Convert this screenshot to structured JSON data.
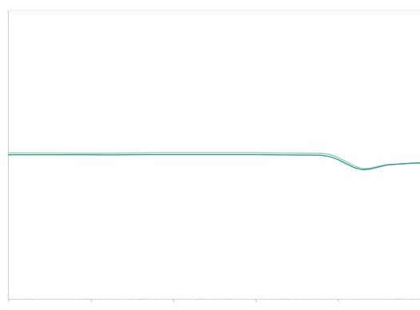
{
  "chart_data": {
    "type": "line",
    "title": "",
    "xlabel": "",
    "ylabel": "",
    "grid": false,
    "legend": "none",
    "xlim": [
      0,
      100
    ],
    "ylim": [
      -1,
      1
    ],
    "colors": {
      "series_a": "#3f9a86",
      "series_b": "#8ccfc1",
      "axis": "#cfcfcf",
      "frame_top": "#e6e6e6"
    },
    "series": [
      {
        "x": [
          0,
          4,
          8,
          12,
          16,
          20,
          24,
          28,
          32,
          36,
          40,
          44,
          48,
          52,
          56,
          60,
          64,
          68,
          72,
          76,
          78,
          80,
          82,
          84,
          86,
          88,
          90,
          92,
          94,
          96,
          98,
          100
        ],
        "values": [
          0.007,
          0.007,
          0.007,
          0.007,
          0.007,
          0.007,
          0.006,
          0.007,
          0.008,
          0.008,
          0.008,
          0.008,
          0.008,
          0.008,
          0.008,
          0.008,
          0.007,
          0.006,
          0.005,
          0.004,
          -0.005,
          -0.025,
          -0.055,
          -0.082,
          -0.098,
          -0.092,
          -0.078,
          -0.065,
          -0.06,
          -0.056,
          -0.052,
          -0.05
        ]
      },
      {
        "x": [
          0,
          4,
          8,
          12,
          16,
          20,
          24,
          28,
          32,
          36,
          40,
          44,
          48,
          52,
          56,
          60,
          64,
          68,
          72,
          76,
          78,
          80,
          82,
          84,
          86,
          88,
          90,
          92,
          94,
          96,
          98,
          100
        ],
        "values": [
          0.02,
          0.02,
          0.019,
          0.019,
          0.018,
          0.018,
          0.018,
          0.019,
          0.02,
          0.021,
          0.021,
          0.021,
          0.021,
          0.021,
          0.021,
          0.021,
          0.02,
          0.019,
          0.018,
          0.017,
          0.01,
          -0.01,
          -0.04,
          -0.07,
          -0.09,
          -0.086,
          -0.072,
          -0.062,
          -0.058,
          -0.054,
          -0.051,
          -0.049
        ]
      }
    ]
  }
}
